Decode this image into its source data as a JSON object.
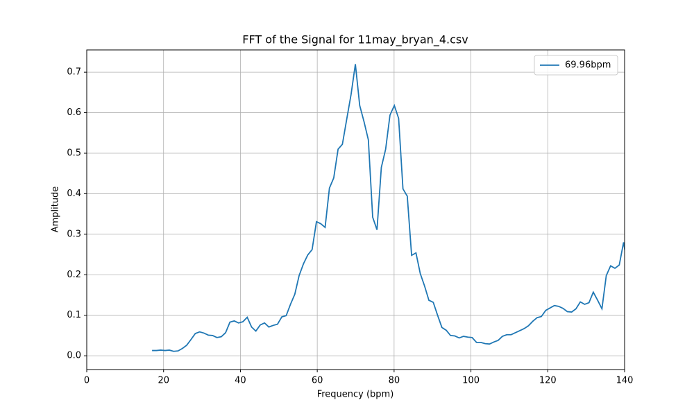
{
  "chart_data": {
    "type": "line",
    "title": "FFT of the Signal for 11may_bryan_4.csv",
    "x_label": "Frequency (bpm)",
    "y_label": "Amplitude",
    "x": [
      17.0,
      18.13,
      19.25,
      20.38,
      21.5,
      22.63,
      23.76,
      24.88,
      26.01,
      27.13,
      28.26,
      29.39,
      30.51,
      31.64,
      32.76,
      33.89,
      35.02,
      36.14,
      37.27,
      38.39,
      39.52,
      40.65,
      41.77,
      42.9,
      44.02,
      45.15,
      46.28,
      47.4,
      48.53,
      49.65,
      50.78,
      51.91,
      53.03,
      54.16,
      55.28,
      56.41,
      57.54,
      58.66,
      59.79,
      60.91,
      62.04,
      63.17,
      64.29,
      65.42,
      66.54,
      67.67,
      68.8,
      69.92,
      71.05,
      72.17,
      73.3,
      74.43,
      75.55,
      76.68,
      77.8,
      78.93,
      80.06,
      81.18,
      82.31,
      83.43,
      84.56,
      85.69,
      86.81,
      87.94,
      89.06,
      90.19,
      91.32,
      92.44,
      93.57,
      94.69,
      95.82,
      96.95,
      98.07,
      99.2,
      100.32,
      101.45,
      102.58,
      103.7,
      104.83,
      105.95,
      107.08,
      108.21,
      109.33,
      110.46,
      111.58,
      112.71,
      113.84,
      114.96,
      116.09,
      117.21,
      118.34,
      119.47,
      120.59,
      121.72,
      122.84,
      123.97,
      125.1,
      126.22,
      127.35,
      128.47,
      129.6,
      130.73,
      131.85,
      132.98,
      134.1,
      135.23,
      136.36,
      137.48,
      138.61,
      139.73,
      140.86
    ],
    "series": [
      {
        "name": "69.96bpm",
        "color": "#1f77b4",
        "values": [
          0.013,
          0.013,
          0.014,
          0.013,
          0.014,
          0.011,
          0.012,
          0.018,
          0.026,
          0.04,
          0.055,
          0.059,
          0.056,
          0.051,
          0.05,
          0.045,
          0.047,
          0.057,
          0.083,
          0.086,
          0.081,
          0.084,
          0.095,
          0.071,
          0.061,
          0.076,
          0.081,
          0.071,
          0.075,
          0.078,
          0.096,
          0.099,
          0.127,
          0.152,
          0.198,
          0.227,
          0.249,
          0.262,
          0.331,
          0.326,
          0.317,
          0.414,
          0.439,
          0.51,
          0.522,
          0.584,
          0.645,
          0.72,
          0.618,
          0.578,
          0.533,
          0.342,
          0.311,
          0.465,
          0.51,
          0.594,
          0.618,
          0.586,
          0.412,
          0.394,
          0.248,
          0.254,
          0.203,
          0.172,
          0.137,
          0.132,
          0.1,
          0.07,
          0.063,
          0.05,
          0.049,
          0.044,
          0.048,
          0.046,
          0.045,
          0.033,
          0.033,
          0.03,
          0.029,
          0.034,
          0.038,
          0.048,
          0.052,
          0.052,
          0.057,
          0.062,
          0.067,
          0.074,
          0.085,
          0.094,
          0.097,
          0.112,
          0.118,
          0.124,
          0.122,
          0.117,
          0.109,
          0.108,
          0.116,
          0.133,
          0.127,
          0.131,
          0.157,
          0.137,
          0.116,
          0.198,
          0.222,
          0.216,
          0.224,
          0.28,
          0.213
        ]
      }
    ],
    "xlim": [
      0,
      140
    ],
    "xticks": [
      0,
      20,
      40,
      60,
      80,
      100,
      120,
      140
    ],
    "ylim": [
      -0.034,
      0.755
    ],
    "yticks": [
      {
        "value": 0,
        "label": "0.0"
      },
      0.1,
      0.2,
      0.3,
      0.4,
      0.5,
      0.6,
      0.7
    ],
    "grid": true,
    "legend": "upper right"
  }
}
